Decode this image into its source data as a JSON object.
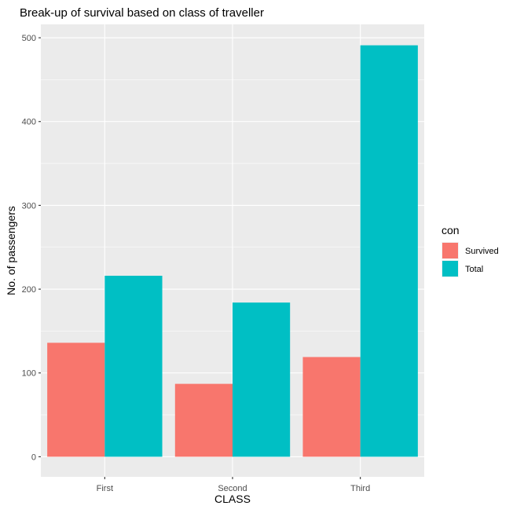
{
  "chart_data": {
    "type": "bar",
    "title": "Break-up of survival based on class of traveller",
    "xlabel": "CLASS",
    "ylabel": "No. of passengers",
    "categories": [
      "First",
      "Second",
      "Third"
    ],
    "series": [
      {
        "name": "Survived",
        "values": [
          136,
          87,
          119
        ],
        "color": "#F8766D"
      },
      {
        "name": "Total",
        "values": [
          216,
          184,
          491
        ],
        "color": "#00BFC4"
      }
    ],
    "ylim": [
      -24,
      516
    ],
    "yticks": [
      0,
      100,
      200,
      300,
      400,
      500
    ],
    "grid": true,
    "legend": {
      "title": "con",
      "placement": "right"
    },
    "panel_background": "#EBEBEB",
    "grid_color": "#FFFFFF"
  }
}
